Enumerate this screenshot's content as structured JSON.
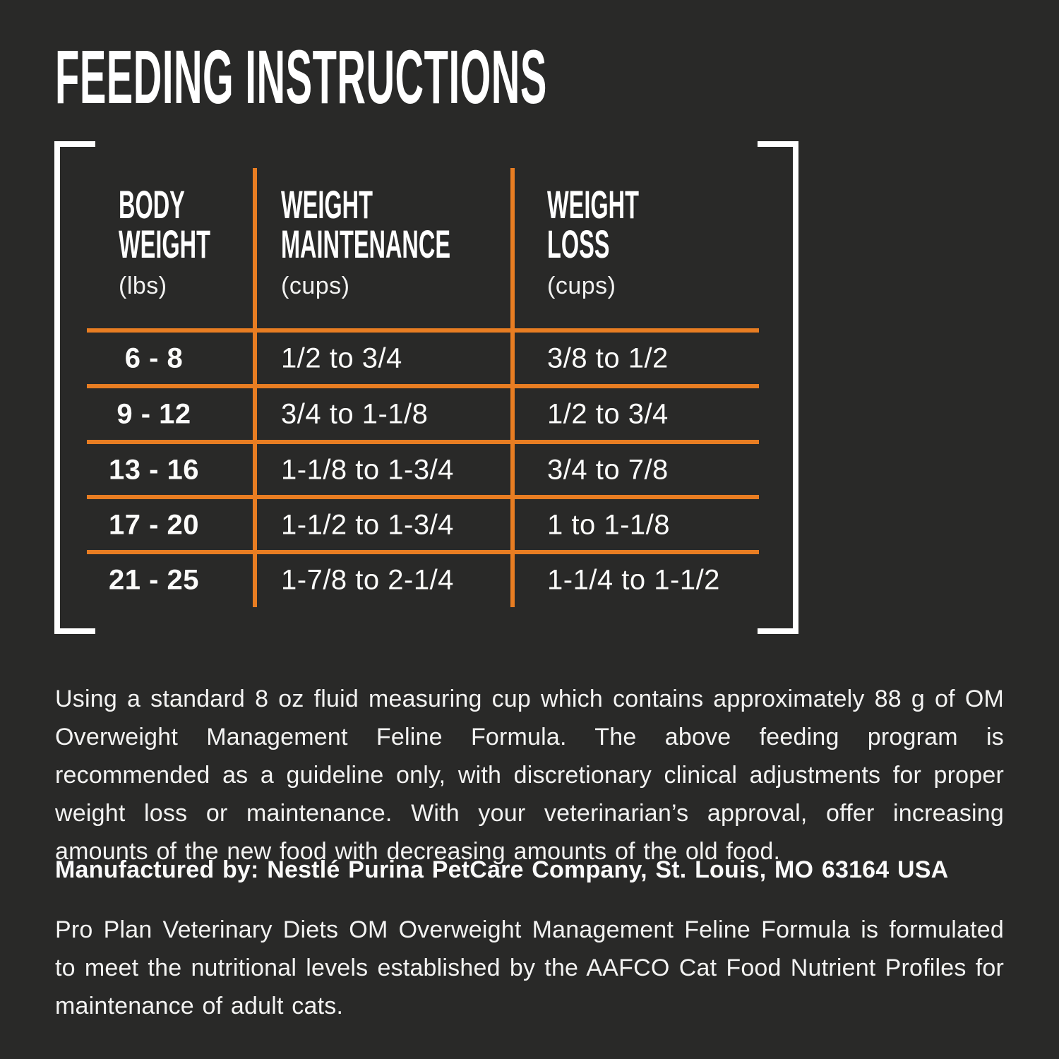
{
  "title": "FEEDING INSTRUCTIONS",
  "colors": {
    "background": "#292928",
    "accent_orange": "#e87d22",
    "bracket_white": "#ffffff",
    "text_white": "#f5f5f4"
  },
  "table": {
    "columns": [
      {
        "line1": "BODY",
        "line2": "WEIGHT",
        "unit": "(lbs)"
      },
      {
        "line1": "WEIGHT",
        "line2": "MAINTENANCE",
        "unit": "(cups)"
      },
      {
        "line1": "WEIGHT",
        "line2": "LOSS",
        "unit": "(cups)"
      }
    ],
    "rows": [
      {
        "body_weight": "6 - 8",
        "maintenance": "1/2 to 3/4",
        "loss": "3/8 to 1/2"
      },
      {
        "body_weight": "9 - 12",
        "maintenance": "3/4 to 1-1/8",
        "loss": "1/2 to 3/4"
      },
      {
        "body_weight": "13 - 16",
        "maintenance": "1-1/8 to 1-3/4",
        "loss": "3/4 to 7/8"
      },
      {
        "body_weight": "17 - 20",
        "maintenance": "1-1/2 to 1-3/4",
        "loss": "1 to 1-1/8"
      },
      {
        "body_weight": "21 - 25",
        "maintenance": "1-7/8 to 2-1/4",
        "loss": "1-1/4 to 1-1/2"
      }
    ]
  },
  "notes": {
    "usage": "Using a standard 8 oz fluid measuring cup which contains approximately 88 g of OM Overweight Management Feline Formula. The above feeding program is recommended as a guideline only, with discretionary clinical adjustments for proper weight loss or maintenance. With your veterinarian’s approval, offer increasing amounts of the new food with decreasing amounts of the old food.",
    "manufactured_by": "Manufactured by: Nestlé Purina PetCare Company, St. Louis, MO 63164 USA",
    "aafco_statement": "Pro Plan Veterinary Diets OM Overweight Management Feline Formula is formulated to meet the nutritional levels established by the AAFCO Cat Food Nutrient Profiles for maintenance of adult cats."
  }
}
